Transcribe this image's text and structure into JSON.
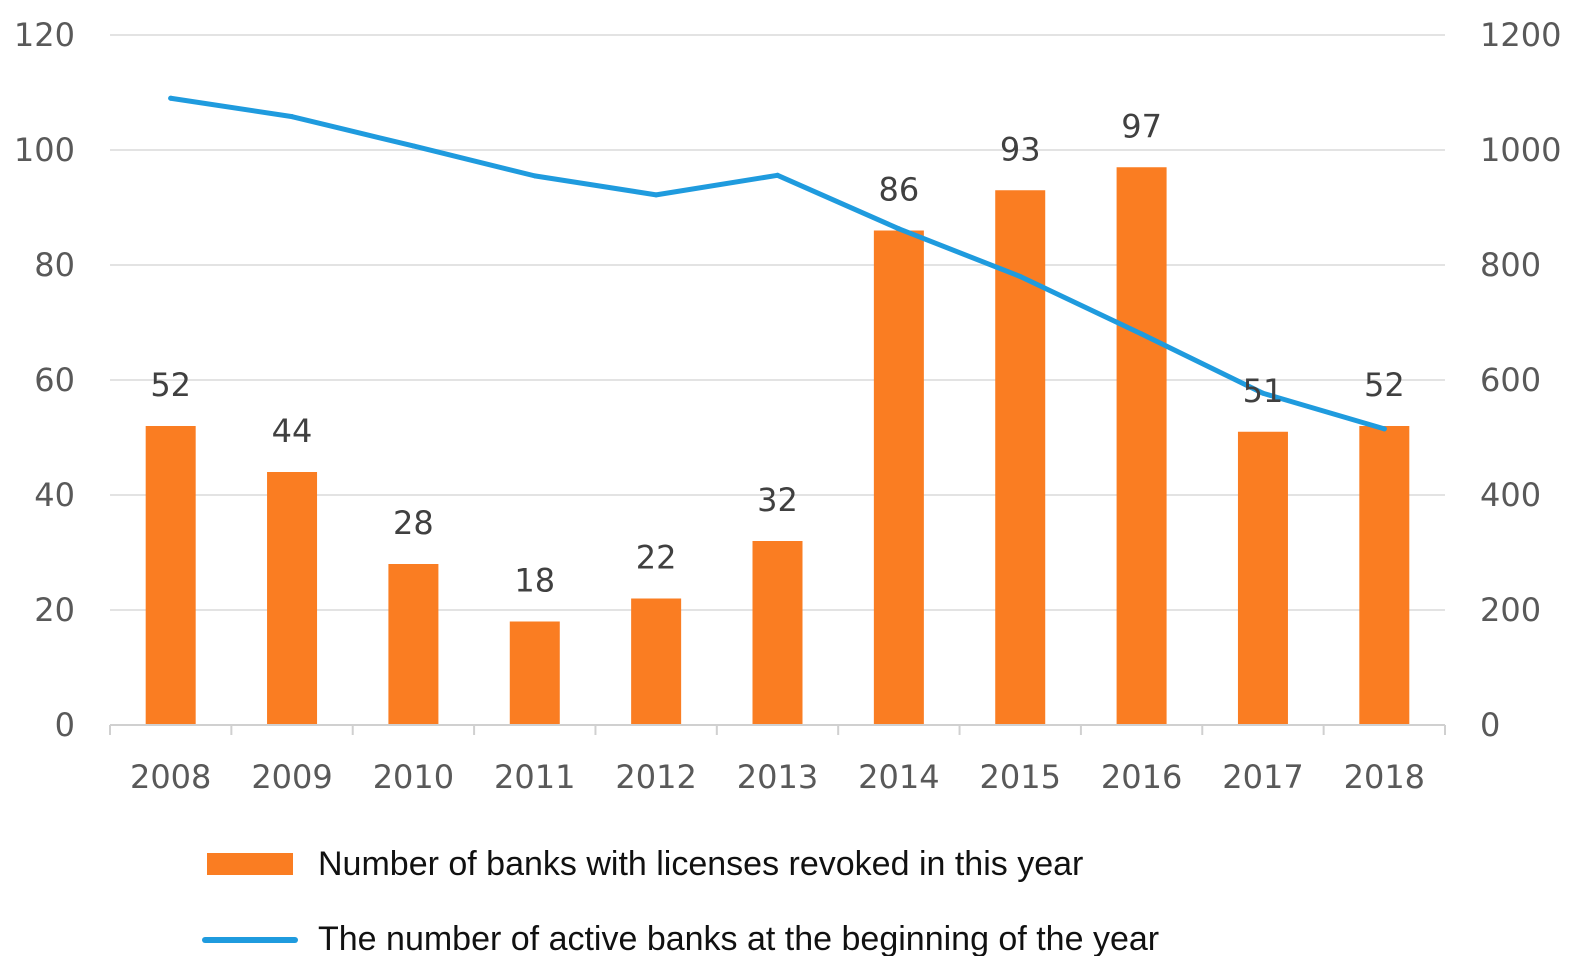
{
  "chart_data": {
    "type": "bar",
    "title": "",
    "xlabel": "",
    "ylabel": "",
    "categories": [
      "2008",
      "2009",
      "2010",
      "2011",
      "2012",
      "2013",
      "2014",
      "2015",
      "2016",
      "2017",
      "2018"
    ],
    "series": [
      {
        "name": "Number of banks with licenses revoked in this year",
        "type": "bar",
        "axis": "left",
        "color": "#FA7D22",
        "values": [
          52,
          44,
          28,
          18,
          22,
          32,
          86,
          93,
          97,
          51,
          52
        ],
        "data_labels": [
          "52",
          "44",
          "28",
          "18",
          "22",
          "32",
          "86",
          "93",
          "97",
          "51",
          "52"
        ]
      },
      {
        "name": "The number of active banks at the beginning of the year",
        "type": "line",
        "axis": "right",
        "color": "#1F9BDE",
        "values": [
          1090,
          1058,
          1007,
          955,
          922,
          956,
          863,
          780,
          680,
          577,
          515
        ]
      }
    ],
    "ylim": [
      0,
      120
    ],
    "y2lim": [
      0,
      1200
    ],
    "y_ticks": [
      "0",
      "20",
      "40",
      "60",
      "80",
      "100",
      "120"
    ],
    "y2_ticks": [
      "0",
      "200",
      "400",
      "600",
      "800",
      "1000",
      "1200"
    ],
    "grid": true,
    "legend_position": "bottom"
  }
}
